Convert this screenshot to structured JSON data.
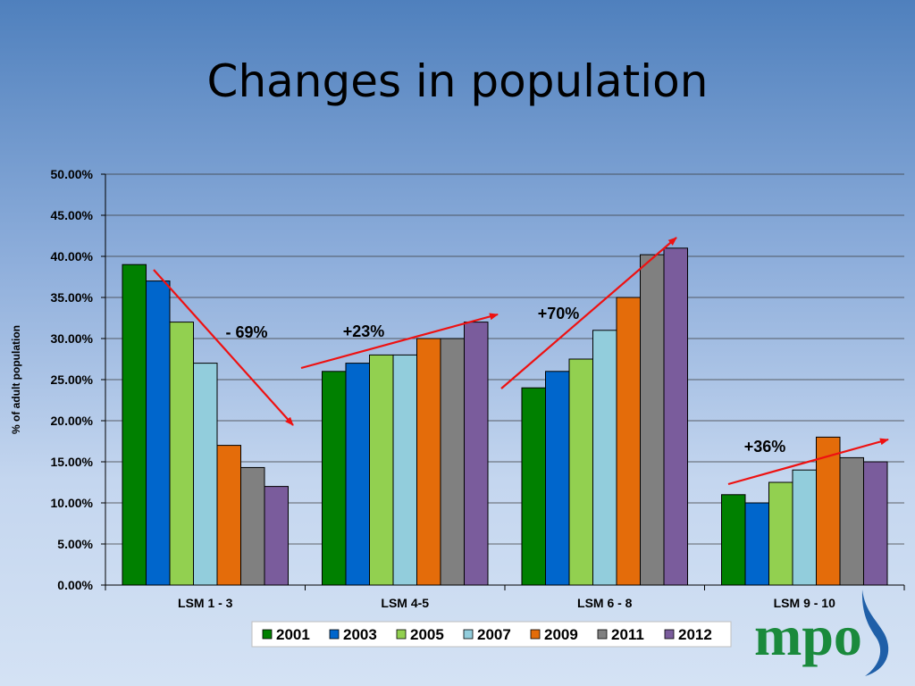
{
  "slide": {
    "title": "Changes in population"
  },
  "logo": {
    "text": "mpo"
  },
  "colors": {
    "2001": "#008000",
    "2003": "#0066cc",
    "2005": "#92d050",
    "2007": "#92cddc",
    "2009": "#e46c0a",
    "2011": "#808080",
    "2012": "#7a5c9c",
    "arrow": "#ee1111"
  },
  "chart_data": {
    "type": "bar",
    "title": "",
    "xlabel": "",
    "ylabel": "% of adult population",
    "ylim": [
      0,
      50
    ],
    "yticks": [
      "0.00%",
      "5.00%",
      "10.00%",
      "15.00%",
      "20.00%",
      "25.00%",
      "30.00%",
      "35.00%",
      "40.00%",
      "45.00%",
      "50.00%"
    ],
    "categories": [
      "LSM 1 - 3",
      "LSM 4-5",
      "LSM 6 - 8",
      "LSM 9 - 10"
    ],
    "series": [
      {
        "name": "2001",
        "values": [
          39,
          26,
          24,
          11
        ]
      },
      {
        "name": "2003",
        "values": [
          37,
          27,
          26,
          10
        ]
      },
      {
        "name": "2005",
        "values": [
          32,
          28,
          27.5,
          12.5
        ]
      },
      {
        "name": "2007",
        "values": [
          27,
          28,
          31,
          14
        ]
      },
      {
        "name": "2009",
        "values": [
          17,
          30,
          35,
          18
        ]
      },
      {
        "name": "2011",
        "values": [
          14.3,
          30,
          40.2,
          15.5
        ]
      },
      {
        "name": "2012",
        "values": [
          12,
          32,
          41,
          15
        ]
      }
    ],
    "grid": true,
    "legend": "bottom",
    "annotations": [
      {
        "text": "- 69%",
        "category": 0
      },
      {
        "text": "+23%",
        "category": 1
      },
      {
        "text": "+70%",
        "category": 2
      },
      {
        "text": "+36%",
        "category": 3
      }
    ]
  }
}
